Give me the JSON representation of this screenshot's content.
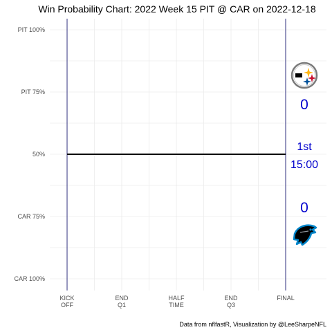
{
  "chart_data": {
    "type": "line",
    "title": "Win Probability Chart: 2022 Week 15 PIT @ CAR on 2022-12-18",
    "caption": "Data from nflfastR, Visualization by @LeeSharpeNFL",
    "x_ticks": [
      {
        "lines": [
          "KICK",
          "OFF"
        ],
        "value": 0
      },
      {
        "lines": [
          "END",
          "Q1"
        ],
        "value": 15
      },
      {
        "lines": [
          "HALF",
          "TIME"
        ],
        "value": 30
      },
      {
        "lines": [
          "END",
          "Q3"
        ],
        "value": 45
      },
      {
        "lines": [
          "FINAL"
        ],
        "value": 60
      }
    ],
    "xlim": [
      0,
      60
    ],
    "y_ticks": [
      {
        "label": "PIT 100%",
        "value": 1.0
      },
      {
        "label": "PIT 75%",
        "value": 0.75
      },
      {
        "label": "50%",
        "value": 0.5
      },
      {
        "label": "CAR 75%",
        "value": 0.25
      },
      {
        "label": "CAR 100%",
        "value": 0.0
      }
    ],
    "ylim": [
      0,
      1
    ],
    "series": [
      {
        "x": [
          0,
          60
        ],
        "y": [
          0.5,
          0.5
        ],
        "color": "#000000"
      }
    ],
    "away_team": {
      "abbr": "PIT",
      "score": "0",
      "logo": "pittsburgh-steelers-logo"
    },
    "home_team": {
      "abbr": "CAR",
      "score": "0",
      "logo": "carolina-panthers-logo"
    },
    "status": {
      "quarter": "1st",
      "clock": "15:00"
    },
    "text_color": "#0000cd",
    "grid": true
  }
}
